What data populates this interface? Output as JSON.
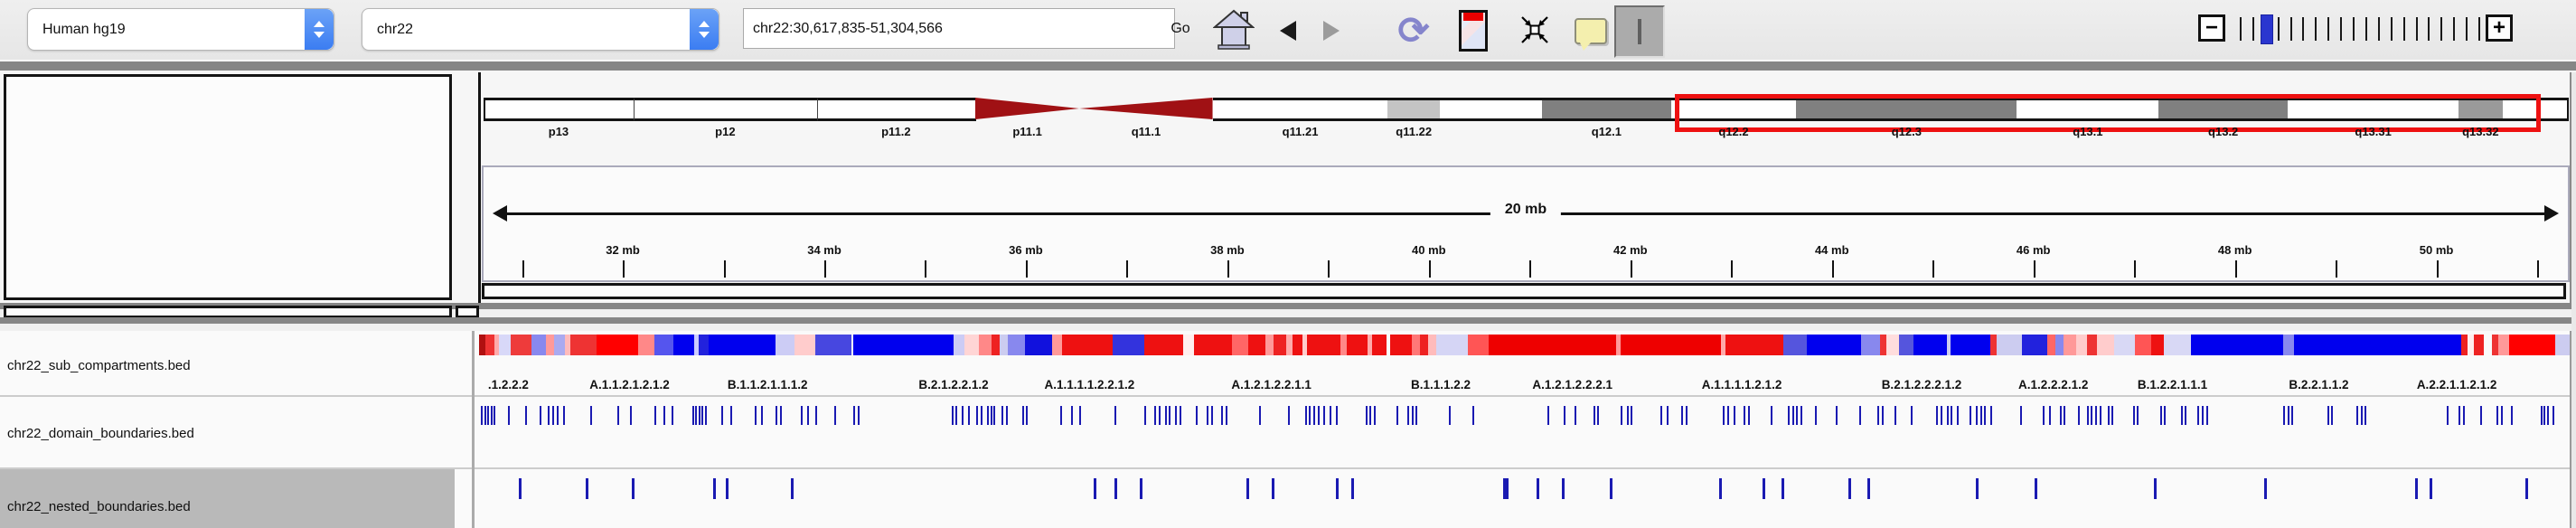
{
  "toolbar": {
    "genome_select": {
      "value": "Human hg19"
    },
    "chromosome_select": {
      "value": "chr22"
    },
    "locus_input": {
      "value": "chr22:30,617,835-51,304,566"
    },
    "go_label": "Go",
    "icons": [
      "home-icon",
      "back-icon",
      "forward-icon",
      "refresh-icon",
      "region-view-icon",
      "fit-to-window-icon",
      "tooltip-bubble-icon",
      "cursor-tool-icon"
    ],
    "zoom": {
      "minus_label": "−",
      "plus_label": "+",
      "tick_count": 20,
      "thumb_index": 2,
      "thumb_color": "#2a36cf"
    }
  },
  "ideogram": {
    "chromosome": "chr22",
    "bands": [
      {
        "name": "p13",
        "start": 0,
        "end": 7.2,
        "fill": "#ffffff",
        "label": "p13"
      },
      {
        "name": "p12",
        "start": 7.2,
        "end": 16.0,
        "fill": "#ffffff",
        "label": "p12"
      },
      {
        "name": "p11.2",
        "start": 16.0,
        "end": 23.6,
        "fill": "#ffffff",
        "label": "p11.2"
      },
      {
        "name": "p11.1",
        "start": 23.6,
        "end": 28.6,
        "fill": "acen-p",
        "label": "p11.1"
      },
      {
        "name": "q11.1",
        "start": 28.6,
        "end": 35.0,
        "fill": "acen-q",
        "label": "q11.1"
      },
      {
        "name": "q11.21",
        "start": 35.0,
        "end": 43.4,
        "fill": "#ffffff",
        "label": "q11.21"
      },
      {
        "name": "q11.22",
        "start": 43.4,
        "end": 45.9,
        "fill": "#c4c4c4",
        "label": "q11.22"
      },
      {
        "name": "q11.23",
        "start": 45.9,
        "end": 50.8,
        "fill": "#ffffff",
        "label": ""
      },
      {
        "name": "q12.1",
        "start": 50.8,
        "end": 57.0,
        "fill": "#808080",
        "label": "q12.1"
      },
      {
        "name": "q12.2",
        "start": 57.0,
        "end": 63.0,
        "fill": "#ffffff",
        "label": "q12.2"
      },
      {
        "name": "q12.3",
        "start": 63.0,
        "end": 73.6,
        "fill": "#808080",
        "label": "q12.3"
      },
      {
        "name": "q13.1",
        "start": 73.6,
        "end": 80.4,
        "fill": "#ffffff",
        "label": "q13.1"
      },
      {
        "name": "q13.2",
        "start": 80.4,
        "end": 86.6,
        "fill": "#808080",
        "label": "q13.2"
      },
      {
        "name": "q13.31",
        "start": 86.6,
        "end": 94.8,
        "fill": "#ffffff",
        "label": "q13.31"
      },
      {
        "name": "q13.32",
        "start": 94.8,
        "end": 96.9,
        "fill": "#9a9a9a",
        "label": "q13.32"
      },
      {
        "name": "q13.33",
        "start": 96.9,
        "end": 100,
        "fill": "#ffffff",
        "label": ""
      }
    ],
    "acen_color": "#a01114",
    "roi_box": {
      "start": 57.2,
      "end": 98.3,
      "color": "#ee1111"
    }
  },
  "ruler": {
    "span_label": "20 mb",
    "mb_start": 30.617835,
    "mb_end": 51.304566,
    "tick_mbs": [
      31,
      32,
      33,
      34,
      35,
      36,
      37,
      38,
      39,
      40,
      41,
      42,
      43,
      44,
      45,
      46,
      47,
      48,
      49,
      50,
      51
    ],
    "label_mbs": [
      32,
      34,
      36,
      38,
      40,
      42,
      44,
      46,
      48,
      50
    ],
    "label_suffix": " mb"
  },
  "tracks": {
    "names": [
      "chr22_sub_compartments.bed",
      "chr22_domain_boundaries.bed",
      "chr22_nested_boundaries.bed"
    ],
    "selected": "chr22_nested_boundaries.bed",
    "selected_bg": "#b9b9b9",
    "sub_compartments": {
      "segments": [
        [
          0,
          0.3,
          "#b01010"
        ],
        [
          0.3,
          0.75,
          "#ee3333"
        ],
        [
          0.75,
          0.95,
          "#ffaaaa"
        ],
        [
          0.95,
          1.5,
          "#d8d8f8"
        ],
        [
          1.5,
          2.5,
          "#ee3b3b"
        ],
        [
          2.5,
          3.2,
          "#8888ee"
        ],
        [
          3.2,
          3.6,
          "#ff9999"
        ],
        [
          3.6,
          4.1,
          "#aaaaf0"
        ],
        [
          4.1,
          4.35,
          "#ffbbbb"
        ],
        [
          4.35,
          5.6,
          "#ee3333"
        ],
        [
          5.6,
          7.6,
          "#ff0000"
        ],
        [
          7.6,
          8.4,
          "#ff8888"
        ],
        [
          8.4,
          9.3,
          "#5555ee"
        ],
        [
          9.3,
          10.3,
          "#0000ee"
        ],
        [
          10.3,
          10.5,
          "#ccccff"
        ],
        [
          10.5,
          11.0,
          "#2222dd"
        ],
        [
          11.0,
          14.2,
          "#0000ee"
        ],
        [
          14.2,
          15.1,
          "#ccccf5"
        ],
        [
          15.1,
          16.1,
          "#ffcccc"
        ],
        [
          16.1,
          17.8,
          "#4747e0"
        ],
        [
          17.9,
          22.7,
          "#0000ee"
        ],
        [
          22.7,
          23.2,
          "#ccccf5"
        ],
        [
          23.2,
          23.9,
          "#ffd5d5"
        ],
        [
          23.9,
          24.5,
          "#ff8888"
        ],
        [
          24.5,
          24.9,
          "#ee2222"
        ],
        [
          24.9,
          25.3,
          "#ccccf0"
        ],
        [
          25.3,
          26.1,
          "#8888ee"
        ],
        [
          26.1,
          27.4,
          "#1111dd"
        ],
        [
          27.4,
          27.9,
          "#ff9999"
        ],
        [
          27.9,
          30.3,
          "#ee1111"
        ],
        [
          30.3,
          31.8,
          "#3333dd"
        ],
        [
          31.8,
          33.7,
          "#ee1111"
        ],
        [
          33.7,
          34.2,
          "#ffeeee"
        ],
        [
          34.2,
          36.0,
          "#ee1111"
        ],
        [
          36.0,
          36.8,
          "#ff6666"
        ],
        [
          36.8,
          37.6,
          "#ee1111"
        ],
        [
          37.6,
          38.0,
          "#ff9999"
        ],
        [
          38.0,
          38.6,
          "#ee2222"
        ],
        [
          38.6,
          38.9,
          "#ffaaaa"
        ],
        [
          38.9,
          39.4,
          "#ee1111"
        ],
        [
          39.4,
          39.6,
          "#ffcccc"
        ],
        [
          39.6,
          41.2,
          "#ee1111"
        ],
        [
          41.2,
          41.5,
          "#ff8888"
        ],
        [
          41.5,
          42.5,
          "#ee1111"
        ],
        [
          42.5,
          42.7,
          "#ffaaaa"
        ],
        [
          42.7,
          43.4,
          "#ee1111"
        ],
        [
          43.6,
          44.6,
          "#ee1111"
        ],
        [
          44.6,
          45.0,
          "#ff7777"
        ],
        [
          45.0,
          45.4,
          "#ee2222"
        ],
        [
          45.4,
          45.8,
          "#ffbbbb"
        ],
        [
          45.8,
          47.3,
          "#d5d5f5"
        ],
        [
          47.3,
          48.3,
          "#ff5555"
        ],
        [
          48.3,
          54.4,
          "#ee0000"
        ],
        [
          54.4,
          54.6,
          "#ff9999"
        ],
        [
          54.6,
          59.4,
          "#ee0000"
        ],
        [
          59.4,
          59.6,
          "#ffaaaa"
        ],
        [
          59.6,
          62.4,
          "#ee1111"
        ],
        [
          62.4,
          63.5,
          "#5555dd"
        ],
        [
          63.5,
          66.1,
          "#0000ee"
        ],
        [
          66.1,
          67.0,
          "#8888ee"
        ],
        [
          67.0,
          67.3,
          "#ee3333"
        ],
        [
          67.3,
          67.9,
          "#ffdddd"
        ],
        [
          67.9,
          68.6,
          "#5555dd"
        ],
        [
          68.6,
          70.2,
          "#0000ee"
        ],
        [
          70.2,
          70.4,
          "#ccccf0"
        ],
        [
          70.4,
          72.3,
          "#0000ee"
        ],
        [
          72.3,
          72.6,
          "#ee3333"
        ],
        [
          72.6,
          73.8,
          "#ccccf0"
        ],
        [
          73.8,
          75.0,
          "#2222dd"
        ],
        [
          75.0,
          75.4,
          "#ff6666"
        ],
        [
          75.4,
          75.8,
          "#8888ee"
        ],
        [
          75.8,
          76.4,
          "#ff9999"
        ],
        [
          76.4,
          76.9,
          "#ffcccc"
        ],
        [
          76.9,
          77.4,
          "#ee3333"
        ],
        [
          77.4,
          78.2,
          "#ffcccc"
        ],
        [
          78.2,
          79.2,
          "#d8d8f5"
        ],
        [
          79.2,
          80.0,
          "#ff5555"
        ],
        [
          80.0,
          80.6,
          "#ee1111"
        ],
        [
          80.6,
          81.9,
          "#d8d8f5"
        ],
        [
          81.9,
          86.3,
          "#0000ee"
        ],
        [
          86.3,
          86.8,
          "#8888ee"
        ],
        [
          86.8,
          94.8,
          "#0000ee"
        ],
        [
          94.8,
          95.1,
          "#ee2222"
        ],
        [
          95.1,
          95.4,
          "#ffeeee"
        ],
        [
          95.4,
          95.9,
          "#ee2222"
        ],
        [
          96.3,
          96.6,
          "#ee3333"
        ],
        [
          96.6,
          97.1,
          "#ff9999"
        ],
        [
          97.1,
          99.3,
          "#ff0000"
        ],
        [
          99.3,
          100,
          "#ccccf0"
        ]
      ],
      "labels": [
        {
          "text": ".1.2.2.2",
          "pct": 1.4
        },
        {
          "text": "A.1.1.2.1.2.1.2",
          "pct": 7.2
        },
        {
          "text": "B.1.1.2.1.1.1.2",
          "pct": 13.8
        },
        {
          "text": "B.2.1.2.2.1.2",
          "pct": 22.7
        },
        {
          "text": "A.1.1.1.1.2.2.1.2",
          "pct": 29.2
        },
        {
          "text": "A.1.2.1.2.2.1.1",
          "pct": 37.9
        },
        {
          "text": "B.1.1.1.2.2",
          "pct": 46.0
        },
        {
          "text": "A.1.2.1.2.2.2.1",
          "pct": 52.3
        },
        {
          "text": "A.1.1.1.1.2.1.2",
          "pct": 60.4
        },
        {
          "text": "B.2.1.2.2.2.1.2",
          "pct": 69.0
        },
        {
          "text": "A.1.2.2.2.1.2",
          "pct": 75.3
        },
        {
          "text": "B.1.2.2.1.1.1",
          "pct": 81.0
        },
        {
          "text": "B.2.2.1.1.2",
          "pct": 88.0
        },
        {
          "text": "A.2.2.1.1.2.1.2",
          "pct": 94.6
        }
      ]
    },
    "domain_boundaries": {
      "tick_color": "#1a1ab2",
      "ticks_pct": [
        0.1,
        0.25,
        0.4,
        0.55,
        0.7,
        1.4,
        2.2,
        2.9,
        3.3,
        3.5,
        3.7,
        4.0,
        5.3,
        6.6,
        7.2,
        8.4,
        8.8,
        9.2,
        10.2,
        10.35,
        10.5,
        10.65,
        10.8,
        11.6,
        12.0,
        13.2,
        13.5,
        14.2,
        14.4,
        15.4,
        15.7,
        16.1,
        17.0,
        17.9,
        18.1,
        22.6,
        22.8,
        23.1,
        23.4,
        23.8,
        24.0,
        24.3,
        24.45,
        24.6,
        25.0,
        25.2,
        26.0,
        26.15,
        27.8,
        28.3,
        28.7,
        30.4,
        31.8,
        32.3,
        32.5,
        32.8,
        33.0,
        33.3,
        33.5,
        34.3,
        34.8,
        35.0,
        35.5,
        35.7,
        37.3,
        38.7,
        39.5,
        39.7,
        39.9,
        40.1,
        40.4,
        40.7,
        41.0,
        42.4,
        42.6,
        42.8,
        43.9,
        44.4,
        44.6,
        44.8,
        46.4,
        47.5,
        51.1,
        51.9,
        52.4,
        53.3,
        53.5,
        54.6,
        54.9,
        55.1,
        56.5,
        56.8,
        57.5,
        57.7,
        59.5,
        59.7,
        60.0,
        60.5,
        60.7,
        61.8,
        62.6,
        62.8,
        63.0,
        63.2,
        63.9,
        64.9,
        66.0,
        66.9,
        67.1,
        67.7,
        68.5,
        69.7,
        69.9,
        70.2,
        70.4,
        70.7,
        71.3,
        71.6,
        71.8,
        72.0,
        72.3,
        73.7,
        74.8,
        75.1,
        75.6,
        75.8,
        76.5,
        76.9,
        77.1,
        77.3,
        77.5,
        77.9,
        78.1,
        79.1,
        79.3,
        80.4,
        80.6,
        81.4,
        81.6,
        82.2,
        82.4,
        82.6,
        86.3,
        86.5,
        86.7,
        88.4,
        88.6,
        89.8,
        90.0,
        90.2,
        94.1,
        94.7,
        94.9,
        95.7,
        96.5,
        96.7,
        97.2,
        98.6,
        98.75,
        98.9,
        99.2
      ]
    },
    "nested_boundaries": {
      "tick_color": "#1a1ab2",
      "ticks_pct": [
        1.9,
        5.1,
        7.3,
        11.2,
        11.8,
        14.9,
        29.4,
        30.4,
        31.6,
        36.7,
        37.9,
        41.0,
        41.7,
        49.0,
        50.6,
        51.8,
        54.1,
        59.3,
        61.4,
        62.3,
        65.5,
        66.4,
        71.6,
        74.4,
        80.1,
        85.4,
        92.6,
        93.3,
        97.9
      ],
      "bold_tick_pct": 49.0
    }
  }
}
